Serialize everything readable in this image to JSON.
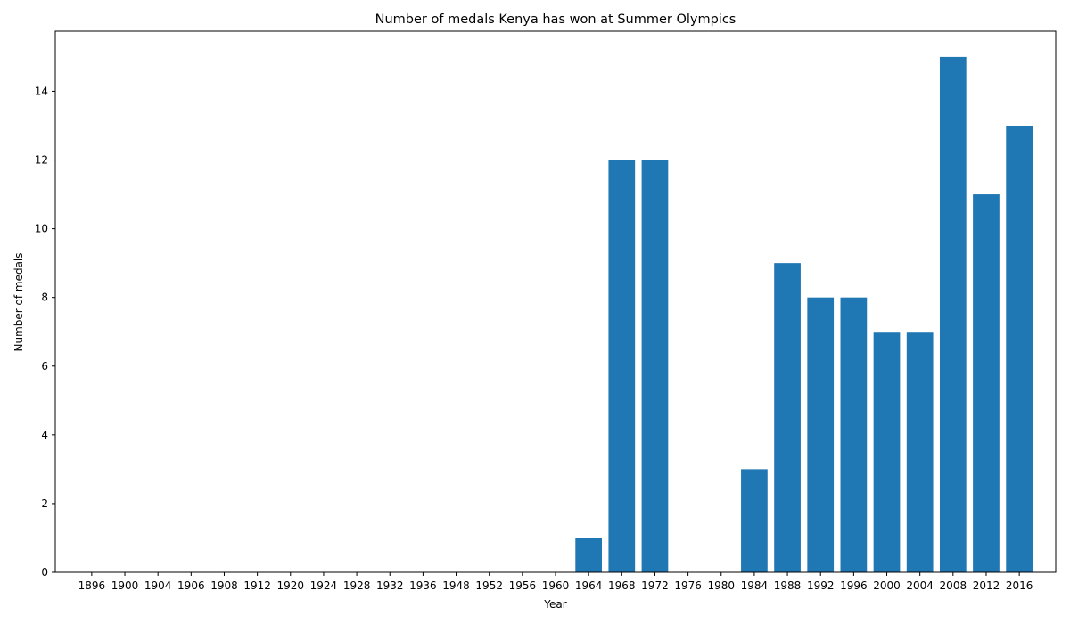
{
  "chart_data": {
    "type": "bar",
    "title": "Number of medals Kenya has won at Summer Olympics",
    "xlabel": "Year",
    "ylabel": "Number of medals",
    "categories": [
      "1896",
      "1900",
      "1904",
      "1906",
      "1908",
      "1912",
      "1920",
      "1924",
      "1928",
      "1932",
      "1936",
      "1948",
      "1952",
      "1956",
      "1960",
      "1964",
      "1968",
      "1972",
      "1976",
      "1980",
      "1984",
      "1988",
      "1992",
      "1996",
      "2000",
      "2004",
      "2008",
      "2012",
      "2016"
    ],
    "values": [
      0,
      0,
      0,
      0,
      0,
      0,
      0,
      0,
      0,
      0,
      0,
      0,
      0,
      0,
      0,
      1,
      12,
      12,
      0,
      0,
      3,
      9,
      8,
      8,
      7,
      7,
      15,
      11,
      13
    ],
    "ylim": [
      0,
      15.75
    ],
    "yticks": [
      0,
      2,
      4,
      6,
      8,
      10,
      12,
      14
    ],
    "bar_color": "#1f77b4",
    "grid": false,
    "legend": "none"
  }
}
